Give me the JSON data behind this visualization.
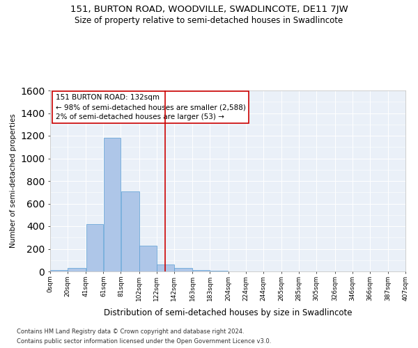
{
  "title": "151, BURTON ROAD, WOODVILLE, SWADLINCOTE, DE11 7JW",
  "subtitle": "Size of property relative to semi-detached houses in Swadlincote",
  "xlabel": "Distribution of semi-detached houses by size in Swadlincote",
  "ylabel": "Number of semi-detached properties",
  "footer_line1": "Contains HM Land Registry data © Crown copyright and database right 2024.",
  "footer_line2": "Contains public sector information licensed under the Open Government Licence v3.0.",
  "annotation_title": "151 BURTON ROAD: 132sqm",
  "annotation_line1": "← 98% of semi-detached houses are smaller (2,588)",
  "annotation_line2": "2% of semi-detached houses are larger (53) →",
  "bar_left_edges": [
    0,
    20,
    41,
    61,
    81,
    102,
    122,
    142,
    163,
    183,
    204,
    224,
    244,
    265,
    285,
    305,
    326,
    346,
    366,
    387
  ],
  "bar_widths": [
    20,
    21,
    20,
    20,
    21,
    20,
    20,
    21,
    20,
    21,
    20,
    20,
    21,
    20,
    20,
    21,
    20,
    20,
    21,
    20
  ],
  "bar_heights": [
    10,
    30,
    420,
    1180,
    710,
    225,
    60,
    30,
    10,
    5,
    2,
    2,
    1,
    0,
    0,
    0,
    0,
    0,
    0,
    0
  ],
  "bar_color": "#aec6e8",
  "bar_edge_color": "#5a9fd4",
  "property_line_x": 132,
  "property_line_color": "#cc0000",
  "annotation_box_color": "#cc0000",
  "ylim": [
    0,
    1600
  ],
  "xlim": [
    0,
    407
  ],
  "tick_labels": [
    "0sqm",
    "20sqm",
    "41sqm",
    "61sqm",
    "81sqm",
    "102sqm",
    "122sqm",
    "142sqm",
    "163sqm",
    "183sqm",
    "204sqm",
    "224sqm",
    "244sqm",
    "265sqm",
    "285sqm",
    "305sqm",
    "326sqm",
    "346sqm",
    "366sqm",
    "387sqm",
    "407sqm"
  ],
  "tick_positions": [
    0,
    20,
    41,
    61,
    81,
    102,
    122,
    142,
    163,
    183,
    204,
    224,
    244,
    265,
    285,
    305,
    326,
    346,
    366,
    387,
    407
  ],
  "background_color": "#eaf0f8",
  "grid_color": "#ffffff",
  "title_fontsize": 9.5,
  "subtitle_fontsize": 8.5,
  "ylabel_fontsize": 7.5,
  "xlabel_fontsize": 8.5,
  "tick_fontsize": 6.5,
  "annotation_fontsize": 7.5,
  "footer_fontsize": 6.0
}
